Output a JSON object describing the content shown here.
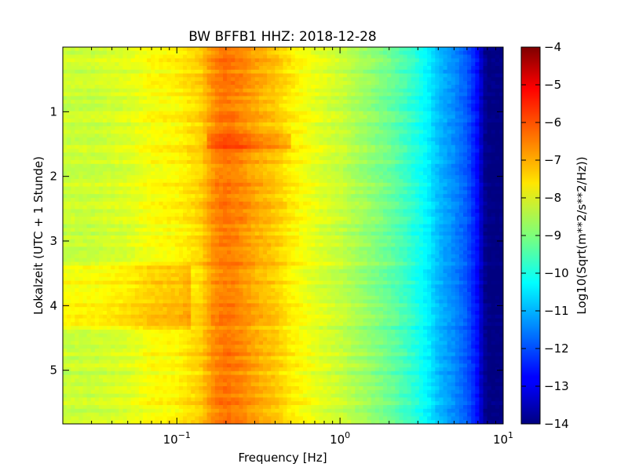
{
  "chart_data": {
    "type": "heatmap",
    "title": "BW BFFB1 HHZ: 2018-12-28",
    "xlabel": "Frequency [Hz]",
    "ylabel": "Lokalzeit (UTC + 1 Stunde)",
    "x_scale": "log",
    "xlim": [
      0.02,
      10
    ],
    "ylim": [
      5.83,
      0
    ],
    "x_ticks": [
      {
        "value": 0.1,
        "base": "10",
        "exp": "−1"
      },
      {
        "value": 1,
        "base": "10",
        "exp": "0"
      },
      {
        "value": 10,
        "base": "10",
        "exp": "1"
      }
    ],
    "y_ticks": [
      {
        "value": 1,
        "label": "1"
      },
      {
        "value": 2,
        "label": "2"
      },
      {
        "value": 3,
        "label": "3"
      },
      {
        "value": 4,
        "label": "4"
      },
      {
        "value": 5,
        "label": "5"
      }
    ],
    "colorbar": {
      "label": "Log10(Sqrt(m**2/s**2/Hz))",
      "colormap": "jet",
      "range": [
        -14,
        -4
      ],
      "ticks": [
        "−4",
        "−5",
        "−6",
        "−7",
        "−8",
        "−9",
        "−10",
        "−11",
        "−12",
        "−13",
        "−14"
      ],
      "tick_values": [
        -4,
        -5,
        -6,
        -7,
        -8,
        -9,
        -10,
        -11,
        -12,
        -13,
        -14
      ]
    },
    "spectrum_profile": {
      "frequency_hz": [
        0.02,
        0.03,
        0.05,
        0.07,
        0.1,
        0.14,
        0.17,
        0.2,
        0.25,
        0.3,
        0.4,
        0.5,
        0.7,
        1.0,
        1.5,
        2.0,
        2.5,
        3.0,
        3.5,
        4.0,
        5.0,
        6.0,
        7.0,
        7.5,
        8.0,
        10.0
      ],
      "median_level": [
        -8.3,
        -8.3,
        -8.1,
        -7.8,
        -7.7,
        -7.3,
        -6.6,
        -6.4,
        -6.6,
        -6.9,
        -7.2,
        -7.6,
        -8.0,
        -8.3,
        -8.8,
        -9.2,
        -9.6,
        -10.0,
        -10.4,
        -10.9,
        -11.4,
        -11.9,
        -12.7,
        -13.6,
        -14.0,
        -14.0
      ]
    },
    "grid": false
  }
}
